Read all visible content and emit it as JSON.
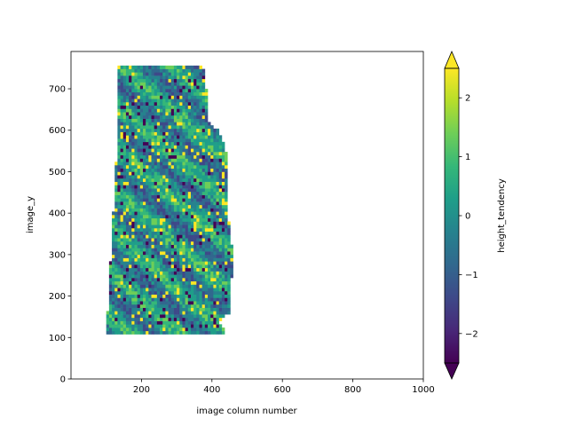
{
  "chart_data": {
    "type": "heatmap",
    "title": "",
    "xlabel": "image column number",
    "ylabel": "image_y",
    "xlim": [
      0,
      1000
    ],
    "ylim": [
      0,
      790
    ],
    "x_ticks": [
      200,
      400,
      600,
      800,
      1000
    ],
    "y_ticks": [
      0,
      100,
      200,
      300,
      400,
      500,
      600,
      700
    ],
    "x_tick_labels": [
      "200",
      "400",
      "600",
      "800",
      "1000"
    ],
    "y_tick_labels": [
      "0",
      "100",
      "200",
      "300",
      "400",
      "500",
      "600",
      "700"
    ],
    "grid": false,
    "colormap": "viridis",
    "colorbar": {
      "label": "height_tendency",
      "range": [
        -2.5,
        2.5
      ],
      "extend": "both",
      "ticks": [
        -2,
        -1,
        0,
        1,
        2
      ],
      "tick_labels": [
        "−2",
        "−1",
        "0",
        "1",
        "2"
      ]
    },
    "data_region": {
      "outline_x": [
        100,
        130,
        135,
        340,
        380,
        390,
        420,
        440,
        445,
        460,
        450,
        420,
        440,
        430,
        100
      ],
      "outline_y": [
        108,
        550,
        760,
        760,
        750,
        620,
        600,
        550,
        400,
        300,
        160,
        140,
        108,
        105,
        108
      ]
    }
  },
  "colors": {
    "viridis": [
      "#440154",
      "#482878",
      "#3e4989",
      "#31688e",
      "#26828e",
      "#1f9e89",
      "#35b779",
      "#6ece58",
      "#b5de2b",
      "#fde725"
    ],
    "background": "#ffffff"
  }
}
